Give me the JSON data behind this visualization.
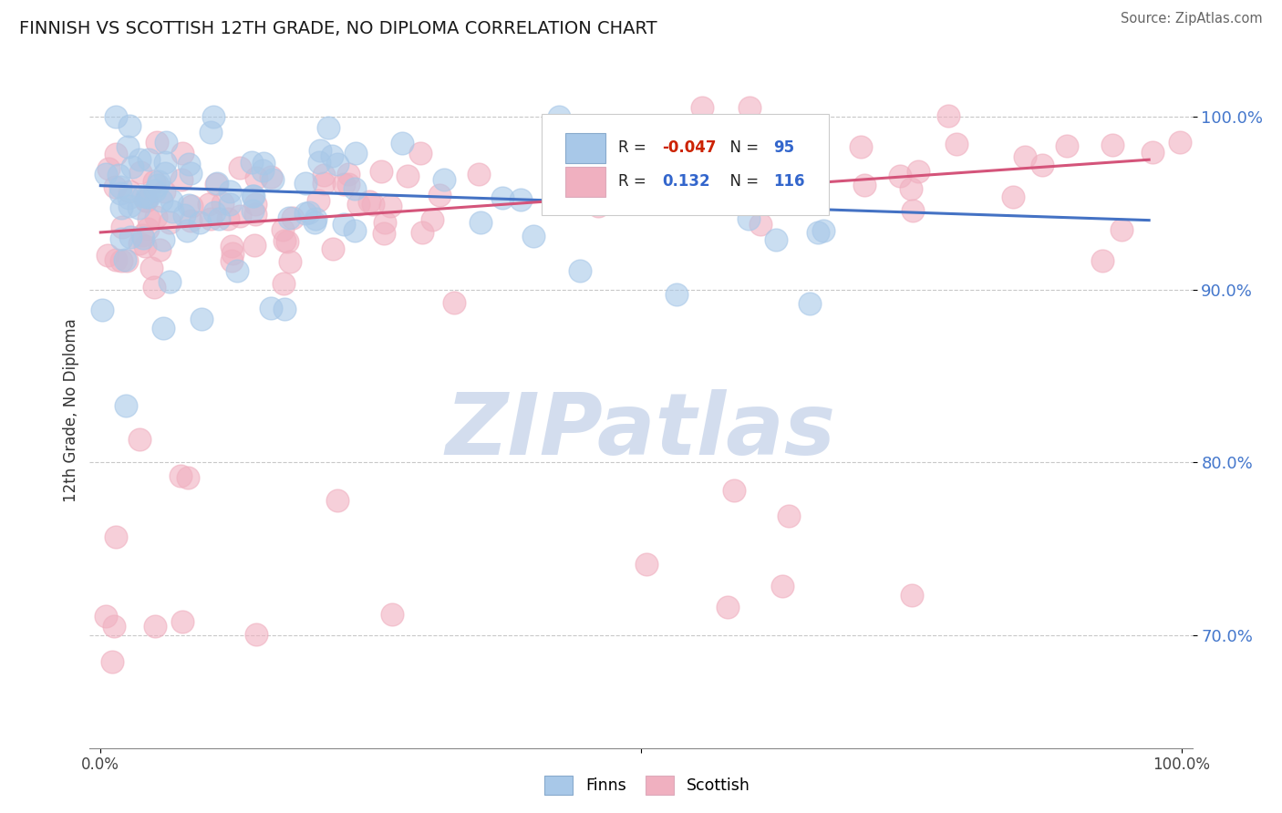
{
  "title": "FINNISH VS SCOTTISH 12TH GRADE, NO DIPLOMA CORRELATION CHART",
  "source": "Source: ZipAtlas.com",
  "ylabel": "12th Grade, No Diploma",
  "xlim": [
    -0.01,
    1.01
  ],
  "ylim": [
    0.635,
    1.025
  ],
  "finns_color": "#a8c8e8",
  "scottish_color": "#f0b0c0",
  "trend_finns_color": "#4472c4",
  "trend_scottish_color": "#d4547a",
  "background_color": "#ffffff",
  "grid_color": "#c8c8c8",
  "legend_r_finns": "-0.047",
  "legend_n_finns": "95",
  "legend_r_scottish": "0.132",
  "legend_n_scottish": "116",
  "finns_trend_x0": 0.0,
  "finns_trend_x1": 0.97,
  "finns_trend_y0": 0.96,
  "finns_trend_y1": 0.94,
  "scottish_trend_x0": 0.0,
  "scottish_trend_x1": 0.97,
  "scottish_trend_y0": 0.933,
  "scottish_trend_y1": 0.975,
  "watermark_text": "ZIPatlas",
  "watermark_color": "#ccd8ec",
  "ytick_labels": [
    "100.0%",
    "90.0%",
    "80.0%",
    "70.0%"
  ],
  "ytick_vals": [
    1.0,
    0.9,
    0.8,
    0.7
  ],
  "ytick_color": "#4477cc"
}
